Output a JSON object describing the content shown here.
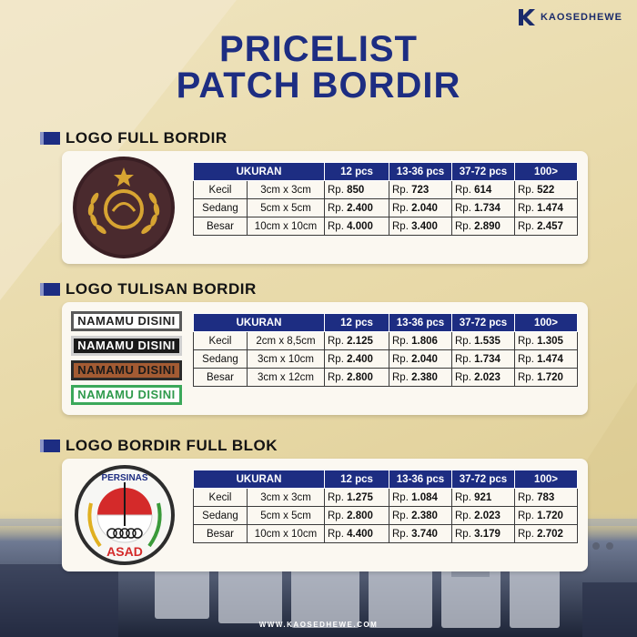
{
  "brand": {
    "name": "KAOSEDHEWE"
  },
  "title": {
    "line1": "PRICELIST",
    "line2": "PATCH BORDIR"
  },
  "colors": {
    "primary": "#1d2d82",
    "background": "#e7d8a6",
    "card": "#fbf8f1"
  },
  "table_headers": [
    "UKURAN",
    "12 pcs",
    "13-36 pcs",
    "37-72 pcs",
    "100>"
  ],
  "currency": "Rp.",
  "sections": [
    {
      "label": "LOGO FULL BORDIR",
      "rows": [
        {
          "name": "Kecil",
          "dim": "3cm x 3cm",
          "prices": [
            "850",
            "723",
            "614",
            "522"
          ]
        },
        {
          "name": "Sedang",
          "dim": "5cm x 5cm",
          "prices": [
            "2.400",
            "2.040",
            "1.734",
            "1.474"
          ]
        },
        {
          "name": "Besar",
          "dim": "10cm x 10cm",
          "prices": [
            "4.000",
            "3.400",
            "2.890",
            "2.457"
          ]
        }
      ]
    },
    {
      "label": "LOGO TULISAN BORDIR",
      "patch_text": "NAMAMU DISINI",
      "rows": [
        {
          "name": "Kecil",
          "dim": "2cm x 8,5cm",
          "prices": [
            "2.125",
            "1.806",
            "1.535",
            "1.305"
          ]
        },
        {
          "name": "Sedang",
          "dim": "3cm x 10cm",
          "prices": [
            "2.400",
            "2.040",
            "1.734",
            "1.474"
          ]
        },
        {
          "name": "Besar",
          "dim": "3cm x 12cm",
          "prices": [
            "2.800",
            "2.380",
            "2.023",
            "1.720"
          ]
        }
      ]
    },
    {
      "label": "LOGO BORDIR FULL BLOK",
      "patch_top_text": "PERSINAS",
      "patch_bottom_text": "ASAD",
      "rows": [
        {
          "name": "Kecil",
          "dim": "3cm x 3cm",
          "prices": [
            "1.275",
            "1.084",
            "921",
            "783"
          ]
        },
        {
          "name": "Sedang",
          "dim": "5cm x 5cm",
          "prices": [
            "2.800",
            "2.380",
            "2.023",
            "1.720"
          ]
        },
        {
          "name": "Besar",
          "dim": "10cm x 10cm",
          "prices": [
            "4.400",
            "3.740",
            "3.179",
            "2.702"
          ]
        }
      ]
    }
  ],
  "footer": {
    "url": "WWW.KAOSEDHEWE.COM"
  }
}
